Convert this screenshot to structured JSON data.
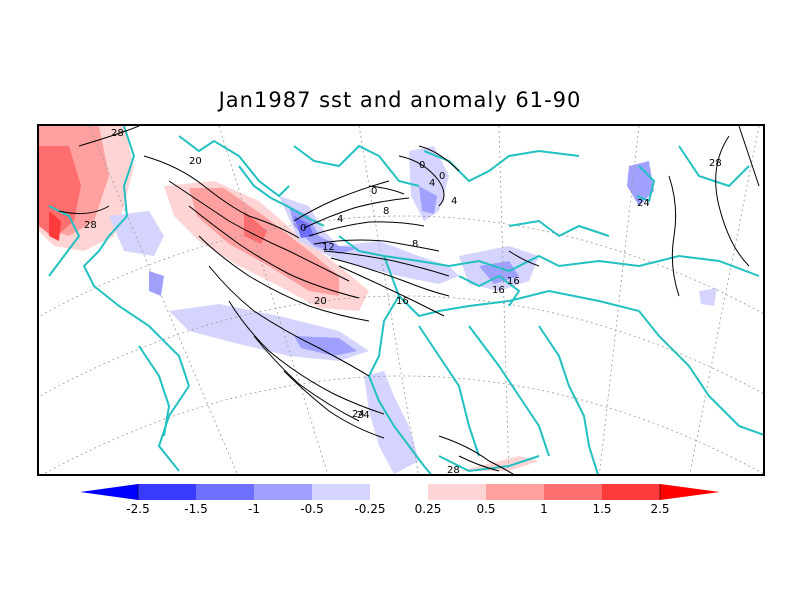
{
  "title": "Jan1987 sst and anomaly 61-90",
  "contour_labels": [
    "28",
    "20",
    "28",
    "0",
    "0",
    "4",
    "8",
    "12",
    "16",
    "20",
    "24",
    "0",
    "4",
    "8",
    "4",
    "0",
    "16",
    "16",
    "24",
    "28",
    "28",
    "24"
  ],
  "colorbar": {
    "labels": [
      "-2.5",
      "-1.5",
      "-1",
      "-0.5",
      "-0.25",
      "0.25",
      "0.5",
      "1",
      "1.5",
      "2.5"
    ],
    "colors": [
      "#0000ff",
      "#3a3aff",
      "#6e6eff",
      "#a0a0ff",
      "#d4d4ff",
      "#ffffff",
      "#ffd4d4",
      "#ffa0a0",
      "#ff6e6e",
      "#ff3a3a",
      "#ff0000"
    ]
  },
  "colors": {
    "coast": "#22c1c1",
    "contour": "#000000",
    "grid": "#999999",
    "neg_light": "#d4d4ff",
    "neg_mid": "#a0a0ff",
    "neg_strong": "#6e6eff",
    "pos_light": "#ffd4d4",
    "pos_mid": "#ffa0a0",
    "pos_strong": "#ff6e6e",
    "pos_max": "#ff3a3a"
  }
}
